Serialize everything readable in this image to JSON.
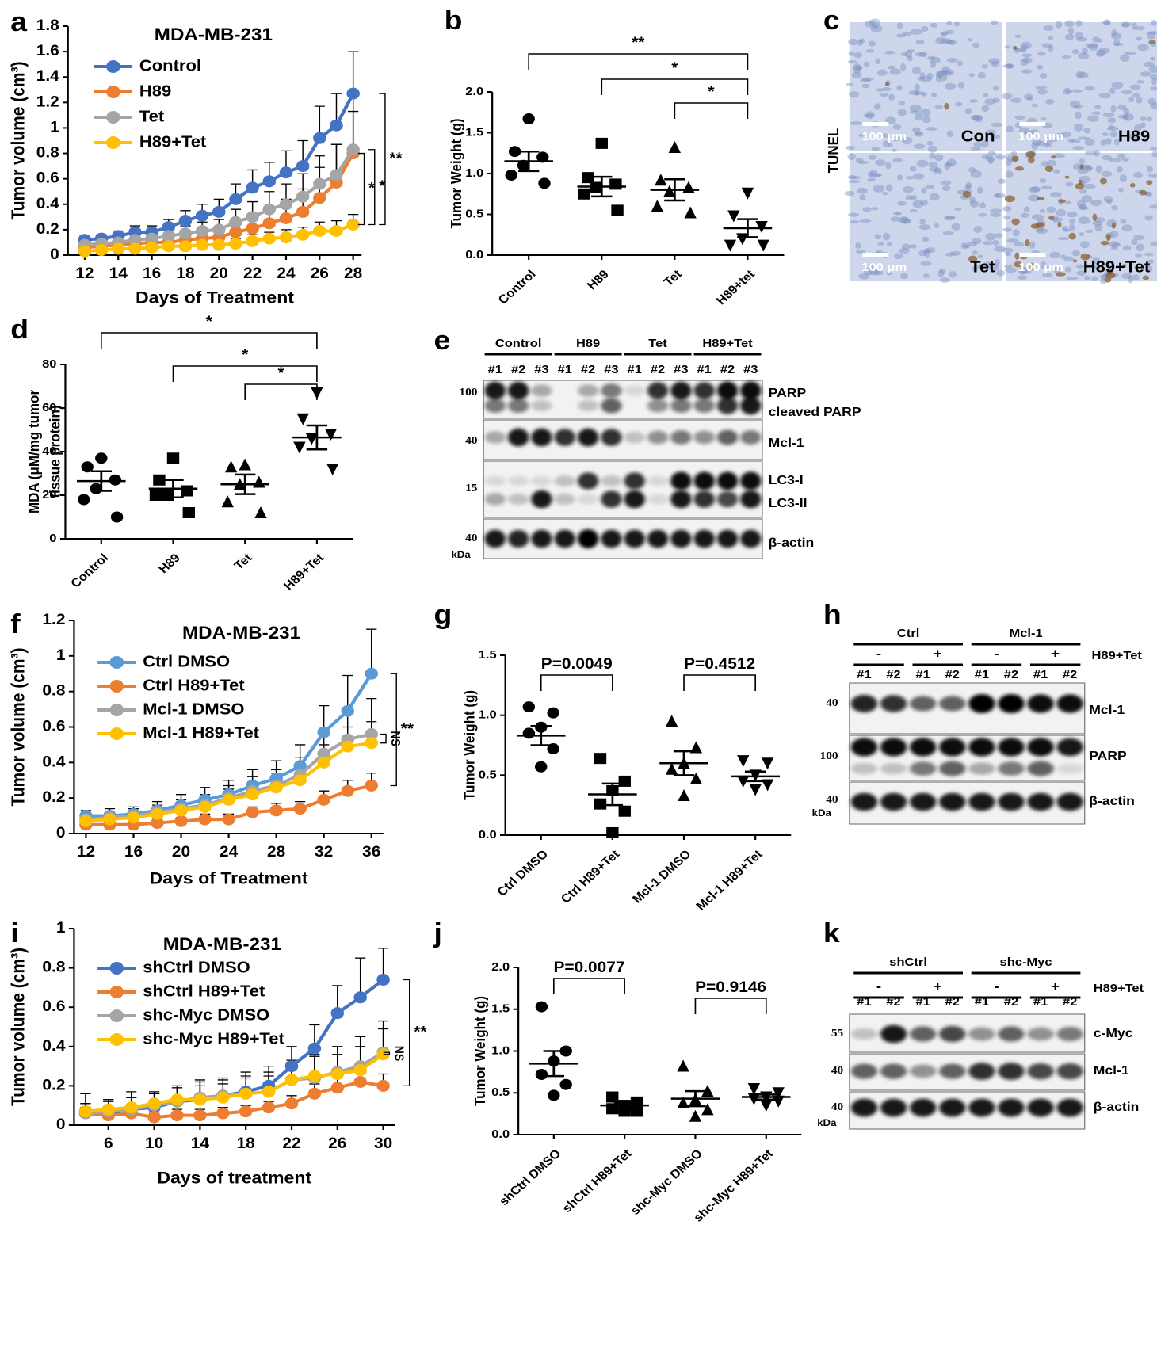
{
  "chart_data": [
    {
      "panel": "a",
      "type": "line",
      "title": "MDA-MB-231",
      "xlabel": "Days of Treatment",
      "ylabel": "Tumor volume (cm³)",
      "x": [
        12,
        13,
        14,
        15,
        16,
        17,
        18,
        19,
        20,
        21,
        22,
        23,
        24,
        25,
        26,
        27,
        28
      ],
      "xlim": [
        11,
        28.5
      ],
      "xticks": [
        12,
        14,
        16,
        18,
        20,
        22,
        24,
        26,
        28
      ],
      "ylim": [
        0,
        1.8
      ],
      "yticks": [
        0,
        0.2,
        0.4,
        0.6,
        0.8,
        1,
        1.2,
        1.4,
        1.6,
        1.8
      ],
      "series": [
        {
          "name": "Control",
          "color": "#4472c4",
          "values": [
            0.12,
            0.13,
            0.15,
            0.18,
            0.18,
            0.22,
            0.27,
            0.31,
            0.34,
            0.44,
            0.53,
            0.58,
            0.65,
            0.7,
            0.92,
            1.02,
            1.27
          ],
          "errors": [
            0.03,
            0.03,
            0.04,
            0.05,
            0.05,
            0.06,
            0.08,
            0.09,
            0.1,
            0.12,
            0.14,
            0.15,
            0.17,
            0.2,
            0.25,
            0.25,
            0.33
          ]
        },
        {
          "name": "H89",
          "color": "#ed7d31",
          "values": [
            0.06,
            0.07,
            0.08,
            0.09,
            0.1,
            0.1,
            0.12,
            0.13,
            0.14,
            0.18,
            0.21,
            0.25,
            0.29,
            0.34,
            0.45,
            0.57,
            0.8
          ],
          "errors": [
            0.02,
            0.02,
            0.03,
            0.03,
            0.04,
            0.04,
            0.05,
            0.05,
            0.06,
            0.08,
            0.1,
            0.12,
            0.15,
            0.18,
            0.24,
            0.3,
            0.45
          ]
        },
        {
          "name": "Tet",
          "color": "#a5a5a5",
          "values": [
            0.08,
            0.09,
            0.1,
            0.12,
            0.13,
            0.15,
            0.17,
            0.19,
            0.2,
            0.26,
            0.3,
            0.36,
            0.4,
            0.46,
            0.56,
            0.63,
            0.83
          ],
          "errors": [
            0.03,
            0.03,
            0.04,
            0.04,
            0.05,
            0.05,
            0.06,
            0.07,
            0.08,
            0.1,
            0.12,
            0.14,
            0.16,
            0.18,
            0.22,
            0.24,
            0.3
          ]
        },
        {
          "name": "H89+Tet",
          "color": "#ffc000",
          "values": [
            0.03,
            0.04,
            0.05,
            0.05,
            0.06,
            0.07,
            0.07,
            0.08,
            0.08,
            0.09,
            0.11,
            0.13,
            0.14,
            0.16,
            0.19,
            0.19,
            0.24
          ],
          "errors": [
            0.02,
            0.02,
            0.02,
            0.02,
            0.03,
            0.03,
            0.03,
            0.03,
            0.04,
            0.04,
            0.05,
            0.05,
            0.06,
            0.06,
            0.07,
            0.08,
            0.08
          ]
        }
      ],
      "annotations": [
        {
          "label": "**",
          "from": 0,
          "to": 3
        },
        {
          "label": "*",
          "from": 2,
          "to": 3
        },
        {
          "label": "*",
          "from": 1,
          "to": 3
        }
      ]
    },
    {
      "panel": "b",
      "type": "dot",
      "ylabel": "Tumor Weight (g)",
      "categories": [
        "Control",
        "H89",
        "Tet",
        "H89+tet"
      ],
      "markers": [
        "circle",
        "square",
        "triangle",
        "triangle-down"
      ],
      "points": [
        [
          1.67,
          1.27,
          1.2,
          1.1,
          0.98,
          0.88
        ],
        [
          1.37,
          0.95,
          0.87,
          0.83,
          0.75,
          0.55
        ],
        [
          1.32,
          0.92,
          0.83,
          0.78,
          0.6,
          0.52
        ],
        [
          0.76,
          0.48,
          0.35,
          0.2,
          0.12,
          0.12
        ]
      ],
      "means": [
        1.15,
        0.84,
        0.8,
        0.33
      ],
      "sems": [
        0.12,
        0.12,
        0.13,
        0.11
      ],
      "ylim": [
        0,
        2
      ],
      "yticks": [
        {
          "value": 0,
          "label": "0.0"
        },
        {
          "value": 0.5,
          "label": "0.5"
        },
        {
          "value": 1,
          "label": "1.0"
        },
        {
          "value": 1.5,
          "label": "1.5"
        },
        {
          "value": 2,
          "label": "2.0"
        }
      ],
      "comparisons": [
        {
          "label": "**",
          "from": 0,
          "to": 3
        },
        {
          "label": "*",
          "from": 1,
          "to": 3
        },
        {
          "label": "*",
          "from": 2,
          "to": 3
        }
      ]
    },
    {
      "panel": "d",
      "type": "dot",
      "ylabel": [
        "MDA (μM/mg tumor",
        "tissue protein)"
      ],
      "categories": [
        "Control",
        "H89",
        "Tet",
        "H89+Tet"
      ],
      "markers": [
        "circle",
        "square",
        "triangle",
        "triangle-down"
      ],
      "points": [
        [
          37,
          33,
          27,
          23,
          18,
          10
        ],
        [
          37,
          27,
          22,
          20,
          20,
          12
        ],
        [
          34,
          33,
          26,
          25,
          17,
          12
        ],
        [
          67,
          55,
          48,
          46,
          42,
          32
        ]
      ],
      "means": [
        26.5,
        23,
        25,
        46.5
      ],
      "sems": [
        4.5,
        4,
        4.5,
        5.5
      ],
      "ylim": [
        0,
        80
      ],
      "yticks": [
        0,
        20,
        40,
        60,
        80
      ],
      "comparisons": [
        {
          "label": "*",
          "from": 0,
          "to": 3
        },
        {
          "label": "*",
          "from": 1,
          "to": 3
        },
        {
          "label": "*",
          "from": 2,
          "to": 3
        }
      ]
    },
    {
      "panel": "f",
      "type": "line",
      "title": "MDA-MB-231",
      "xlabel": "Days of Treatment",
      "ylabel": "Tumor volume (cm³)",
      "x": [
        12,
        14,
        16,
        18,
        20,
        22,
        24,
        26,
        28,
        30,
        32,
        34,
        36
      ],
      "xlim": [
        11,
        37
      ],
      "xticks": [
        12,
        16,
        20,
        24,
        28,
        32,
        36
      ],
      "ylim": [
        0,
        1.2
      ],
      "yticks": [
        0,
        0.2,
        0.4,
        0.6,
        0.8,
        1,
        1.2
      ],
      "series": [
        {
          "name": "Ctrl DMSO",
          "color": "#5b9bd5",
          "values": [
            0.1,
            0.1,
            0.11,
            0.13,
            0.16,
            0.19,
            0.22,
            0.27,
            0.31,
            0.38,
            0.57,
            0.69,
            0.9
          ],
          "errors": [
            0.03,
            0.04,
            0.04,
            0.05,
            0.06,
            0.07,
            0.08,
            0.09,
            0.1,
            0.12,
            0.15,
            0.2,
            0.25
          ]
        },
        {
          "name": "Ctrl H89+Tet",
          "color": "#ed7d31",
          "values": [
            0.05,
            0.05,
            0.05,
            0.06,
            0.07,
            0.08,
            0.08,
            0.12,
            0.13,
            0.14,
            0.19,
            0.24,
            0.27
          ],
          "errors": [
            0.01,
            0.01,
            0.02,
            0.02,
            0.02,
            0.03,
            0.03,
            0.03,
            0.04,
            0.04,
            0.05,
            0.06,
            0.07
          ]
        },
        {
          "name": "Mcl-1 DMSO",
          "color": "#a5a5a5",
          "values": [
            0.08,
            0.09,
            0.1,
            0.12,
            0.14,
            0.16,
            0.2,
            0.24,
            0.27,
            0.33,
            0.45,
            0.53,
            0.56
          ],
          "errors": [
            0.03,
            0.03,
            0.04,
            0.04,
            0.05,
            0.06,
            0.07,
            0.08,
            0.09,
            0.1,
            0.12,
            0.15,
            0.2
          ]
        },
        {
          "name": "Mcl-1 H89+Tet",
          "color": "#ffc000",
          "values": [
            0.07,
            0.08,
            0.09,
            0.11,
            0.13,
            0.15,
            0.19,
            0.22,
            0.26,
            0.3,
            0.4,
            0.49,
            0.51
          ],
          "errors": [
            0.02,
            0.03,
            0.03,
            0.04,
            0.04,
            0.05,
            0.06,
            0.07,
            0.08,
            0.08,
            0.1,
            0.11,
            0.12
          ]
        }
      ],
      "annotations": [
        {
          "label": "NS",
          "from": 2,
          "to": 3
        },
        {
          "label": "**",
          "from": 0,
          "to": 1
        }
      ]
    },
    {
      "panel": "g",
      "type": "dot",
      "ylabel": "Tumor Weight (g)",
      "categories": [
        "Ctrl DMSO",
        "Ctrl H89+Tet",
        "Mcl-1 DMSO",
        "Mcl-1 H89+Tet"
      ],
      "markers": [
        "circle",
        "square",
        "triangle",
        "triangle-down"
      ],
      "points": [
        [
          1.07,
          1.02,
          0.9,
          0.85,
          0.72,
          0.57
        ],
        [
          0.64,
          0.45,
          0.37,
          0.26,
          0.2,
          0.02
        ],
        [
          0.95,
          0.73,
          0.6,
          0.55,
          0.47,
          0.33
        ],
        [
          0.62,
          0.6,
          0.5,
          0.45,
          0.42,
          0.38
        ]
      ],
      "means": [
        0.83,
        0.34,
        0.6,
        0.49
      ],
      "sems": [
        0.08,
        0.09,
        0.1,
        0.04
      ],
      "ylim": [
        0,
        1.5
      ],
      "yticks": [
        {
          "value": 0,
          "label": "0.0"
        },
        {
          "value": 0.5,
          "label": "0.5"
        },
        {
          "value": 1,
          "label": "1.0"
        },
        {
          "value": 1.5,
          "label": "1.5"
        }
      ],
      "comparisons": [
        {
          "label": "P=0.0049",
          "from": 0,
          "to": 1
        },
        {
          "label": "P=0.4512",
          "from": 2,
          "to": 3
        }
      ]
    },
    {
      "panel": "i",
      "type": "line",
      "title": "MDA-MB-231",
      "xlabel": "Days of treatment",
      "ylabel": "Tumor volume (cm³)",
      "x": [
        4,
        6,
        8,
        10,
        12,
        14,
        16,
        18,
        20,
        22,
        24,
        26,
        28,
        30
      ],
      "xlim": [
        3,
        31
      ],
      "xticks": [
        6,
        10,
        14,
        18,
        22,
        26,
        30
      ],
      "ylim": [
        0,
        1
      ],
      "yticks": [
        0,
        0.2,
        0.4,
        0.6,
        0.8,
        1
      ],
      "series": [
        {
          "name": "shCtrl DMSO",
          "color": "#4472c4",
          "values": [
            0.07,
            0.06,
            0.08,
            0.09,
            0.12,
            0.13,
            0.15,
            0.17,
            0.2,
            0.3,
            0.39,
            0.57,
            0.65,
            0.74
          ],
          "errors": [
            0.09,
            0.07,
            0.09,
            0.07,
            0.08,
            0.1,
            0.09,
            0.1,
            0.1,
            0.1,
            0.12,
            0.14,
            0.2,
            0.16
          ]
        },
        {
          "name": "shCtrl H89+Tet",
          "color": "#ed7d31",
          "values": [
            0.06,
            0.05,
            0.06,
            0.04,
            0.05,
            0.05,
            0.06,
            0.07,
            0.09,
            0.11,
            0.16,
            0.19,
            0.22,
            0.2
          ],
          "errors": [
            0.03,
            0.03,
            0.03,
            0.02,
            0.03,
            0.03,
            0.03,
            0.03,
            0.03,
            0.04,
            0.05,
            0.05,
            0.05,
            0.06
          ]
        },
        {
          "name": "shc-Myc DMSO",
          "color": "#a5a5a5",
          "values": [
            0.06,
            0.07,
            0.08,
            0.1,
            0.12,
            0.14,
            0.15,
            0.16,
            0.17,
            0.23,
            0.24,
            0.27,
            0.3,
            0.37
          ],
          "errors": [
            0.05,
            0.05,
            0.06,
            0.06,
            0.07,
            0.08,
            0.08,
            0.09,
            0.1,
            0.1,
            0.12,
            0.13,
            0.15,
            0.16
          ]
        },
        {
          "name": "shc-Myc H89+Tet",
          "color": "#ffc000",
          "values": [
            0.07,
            0.08,
            0.09,
            0.11,
            0.13,
            0.13,
            0.14,
            0.16,
            0.17,
            0.23,
            0.25,
            0.26,
            0.28,
            0.36
          ],
          "errors": [
            0.04,
            0.05,
            0.05,
            0.06,
            0.06,
            0.07,
            0.07,
            0.08,
            0.08,
            0.09,
            0.1,
            0.1,
            0.12,
            0.13
          ]
        }
      ],
      "annotations": [
        {
          "label": "NS",
          "from": 2,
          "to": 3
        },
        {
          "label": "**",
          "from": 0,
          "to": 1
        }
      ]
    },
    {
      "panel": "j",
      "type": "dot",
      "ylabel": "Tumor Weight (g)",
      "categories": [
        "shCtrl DMSO",
        "shCtrl H89+Tet",
        "shc-Myc DMSO",
        "shc-Myc H89+Tet"
      ],
      "markers": [
        "circle",
        "square",
        "triangle",
        "triangle-down"
      ],
      "points": [
        [
          1.53,
          1.0,
          0.88,
          0.72,
          0.6,
          0.47
        ],
        [
          0.45,
          0.39,
          0.35,
          0.31,
          0.28,
          0.28
        ],
        [
          0.82,
          0.52,
          0.42,
          0.38,
          0.3,
          0.22
        ],
        [
          0.55,
          0.5,
          0.45,
          0.43,
          0.4,
          0.35
        ]
      ],
      "means": [
        0.85,
        0.35,
        0.43,
        0.45
      ],
      "sems": [
        0.15,
        0.03,
        0.09,
        0.03
      ],
      "ylim": [
        0,
        2
      ],
      "yticks": [
        {
          "value": 0,
          "label": "0.0"
        },
        {
          "value": 0.5,
          "label": "0.5"
        },
        {
          "value": 1,
          "label": "1.0"
        },
        {
          "value": 1.5,
          "label": "1.5"
        },
        {
          "value": 2,
          "label": "2.0"
        }
      ],
      "comparisons": [
        {
          "label": "P=0.0077",
          "from": 0,
          "to": 1
        },
        {
          "label": "P=0.9146",
          "from": 2,
          "to": 3
        }
      ]
    }
  ],
  "tunel": {
    "panel": "c",
    "side_label": "TUNEL",
    "scale_bar": "100 μm",
    "images": [
      "Con",
      "H89",
      "Tet",
      "H89+Tet"
    ]
  },
  "blots": [
    {
      "panel": "e",
      "groups": [
        "Control",
        "H89",
        "Tet",
        "H89+Tet"
      ],
      "lanes": [
        "#1",
        "#2",
        "#3",
        "#1",
        "#2",
        "#3",
        "#1",
        "#2",
        "#3",
        "#1",
        "#2",
        "#3"
      ],
      "rows": [
        {
          "marker": 100,
          "labels": [
            "PARP",
            "cleaved PARP"
          ]
        },
        {
          "marker": 40,
          "labels": [
            "Mcl-1"
          ]
        },
        {
          "marker": 15,
          "labels": [
            "LC3-I",
            "LC3-II"
          ]
        },
        {
          "marker": 40,
          "labels": [
            "β-actin"
          ]
        }
      ],
      "unit": "kDa"
    },
    {
      "panel": "h",
      "groups": [
        "Ctrl",
        "Mcl-1"
      ],
      "treatment": [
        "-",
        "+",
        "-",
        "+"
      ],
      "treatment_label": "H89+Tet",
      "lanes": [
        "#1",
        "#2",
        "#1",
        "#2",
        "#1",
        "#2",
        "#1",
        "#2"
      ],
      "rows": [
        {
          "marker": 40,
          "labels": [
            "Mcl-1"
          ]
        },
        {
          "marker": 100,
          "labels": [
            "PARP"
          ]
        },
        {
          "marker": 40,
          "labels": [
            "β-actin"
          ]
        }
      ],
      "unit": "kDa"
    },
    {
      "panel": "k",
      "groups": [
        "shCtrl",
        "shc-Myc"
      ],
      "treatment": [
        "-",
        "+",
        "-",
        "+"
      ],
      "treatment_label": "H89+Tet",
      "lanes": [
        "#1",
        "#2",
        "#1",
        "#2",
        "#1",
        "#2",
        "#1",
        "#2"
      ],
      "rows": [
        {
          "marker": 55,
          "labels": [
            "c-Myc"
          ]
        },
        {
          "marker": 40,
          "labels": [
            "Mcl-1"
          ]
        },
        {
          "marker": 40,
          "labels": [
            "β-actin"
          ]
        }
      ],
      "unit": "kDa"
    }
  ]
}
